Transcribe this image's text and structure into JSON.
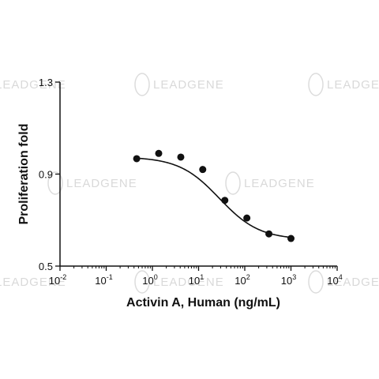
{
  "watermark": {
    "text": "LEADGENE"
  },
  "chart_data": {
    "type": "scatter",
    "title": "",
    "xlabel": "Activin A, Human (ng/mL)",
    "ylabel": "Proliferation fold",
    "x_scale": "log",
    "xlim": [
      0.01,
      10000
    ],
    "ylim": [
      0.5,
      1.3
    ],
    "x_ticks": [
      0.01,
      0.1,
      1,
      10,
      100,
      1000,
      10000
    ],
    "x_tick_labels": [
      {
        "base": "10",
        "exp": "-2"
      },
      {
        "base": "10",
        "exp": "-1"
      },
      {
        "base": "10",
        "exp": "0"
      },
      {
        "base": "10",
        "exp": "1"
      },
      {
        "base": "10",
        "exp": "2"
      },
      {
        "base": "10",
        "exp": "3"
      },
      {
        "base": "10",
        "exp": "4"
      }
    ],
    "y_ticks": [
      0.5,
      0.9,
      1.3
    ],
    "y_tick_labels": [
      "0.5",
      "0.9",
      "1.3"
    ],
    "grid": false,
    "legend": "none",
    "series": [
      {
        "points": [
          {
            "x": 0.457,
            "y": 0.967
          },
          {
            "x": 1.37,
            "y": 0.99
          },
          {
            "x": 4.12,
            "y": 0.974
          },
          {
            "x": 12.3,
            "y": 0.92
          },
          {
            "x": 37.0,
            "y": 0.786
          },
          {
            "x": 111,
            "y": 0.709
          },
          {
            "x": 333,
            "y": 0.64
          },
          {
            "x": 1000,
            "y": 0.62
          }
        ],
        "fit_curve": {
          "model": "4PL",
          "top": 0.975,
          "bottom": 0.615,
          "ec50": 28,
          "hill_slope": 1.0
        }
      }
    ],
    "colors": {
      "markers": "#111111",
      "curve": "#111111",
      "axes": "#111111"
    }
  }
}
